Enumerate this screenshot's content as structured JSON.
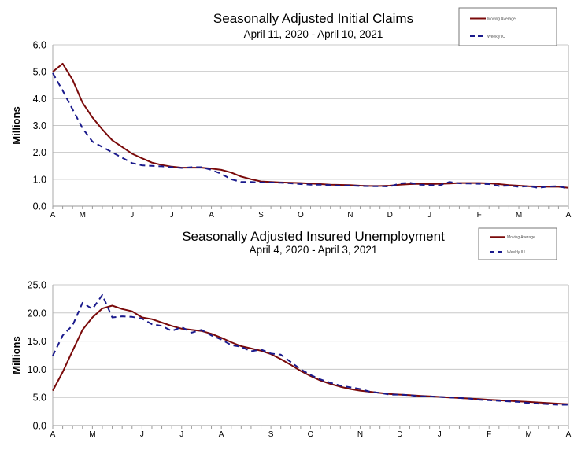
{
  "chart_data": [
    {
      "type": "line",
      "title": "Seasonally Adjusted Initial Claims",
      "subtitle": "April 11, 2020 - April 10, 2021",
      "ylabel": "Millions",
      "ylim": [
        0,
        6
      ],
      "yticks": [
        "0.0",
        "1.0",
        "2.0",
        "3.0",
        "4.0",
        "5.0",
        "6.0"
      ],
      "xticks": [
        {
          "label": "A",
          "week": 0
        },
        {
          "label": "M",
          "week": 3
        },
        {
          "label": "J",
          "week": 8
        },
        {
          "label": "J",
          "week": 12
        },
        {
          "label": "A",
          "week": 16
        },
        {
          "label": "S",
          "week": 21
        },
        {
          "label": "O",
          "week": 25
        },
        {
          "label": "N",
          "week": 30
        },
        {
          "label": "D",
          "week": 34
        },
        {
          "label": "J",
          "week": 38
        },
        {
          "label": "F",
          "week": 43
        },
        {
          "label": "M",
          "week": 47
        },
        {
          "label": "A",
          "week": 52
        }
      ],
      "grid": true,
      "legend": "top-right",
      "series": [
        {
          "name": "Moving Average",
          "color": "#7a0a0a",
          "dash": false,
          "values": [
            5.0,
            5.3,
            4.7,
            3.85,
            3.3,
            2.85,
            2.45,
            2.2,
            1.95,
            1.78,
            1.62,
            1.53,
            1.47,
            1.43,
            1.43,
            1.43,
            1.4,
            1.35,
            1.25,
            1.1,
            1.0,
            0.92,
            0.9,
            0.88,
            0.87,
            0.86,
            0.84,
            0.82,
            0.8,
            0.79,
            0.78,
            0.76,
            0.75,
            0.75,
            0.76,
            0.8,
            0.82,
            0.83,
            0.82,
            0.83,
            0.84,
            0.86,
            0.86,
            0.86,
            0.85,
            0.82,
            0.78,
            0.76,
            0.74,
            0.73,
            0.72,
            0.72,
            0.68
          ]
        },
        {
          "name": "Weekly IC",
          "color": "#1a1a8c",
          "dash": true,
          "values": [
            4.95,
            4.3,
            3.6,
            2.9,
            2.4,
            2.2,
            2.0,
            1.8,
            1.6,
            1.52,
            1.5,
            1.48,
            1.45,
            1.42,
            1.45,
            1.45,
            1.35,
            1.2,
            1.0,
            0.9,
            0.9,
            0.88,
            0.88,
            0.87,
            0.85,
            0.82,
            0.8,
            0.8,
            0.78,
            0.76,
            0.77,
            0.75,
            0.74,
            0.74,
            0.73,
            0.85,
            0.87,
            0.8,
            0.78,
            0.77,
            0.9,
            0.85,
            0.84,
            0.83,
            0.82,
            0.75,
            0.76,
            0.72,
            0.74,
            0.68,
            0.73,
            0.74,
            0.65
          ]
        }
      ]
    },
    {
      "type": "line",
      "title": "Seasonally Adjusted Insured Unemployment",
      "subtitle": "April 4, 2020 - April 3, 2021",
      "ylabel": "Millions",
      "ylim": [
        0,
        25
      ],
      "yticks": [
        "0.0",
        "5.0",
        "10.0",
        "15.0",
        "20.0",
        "25.0"
      ],
      "xticks": [
        {
          "label": "A",
          "week": 0
        },
        {
          "label": "M",
          "week": 4
        },
        {
          "label": "J",
          "week": 9
        },
        {
          "label": "J",
          "week": 13
        },
        {
          "label": "A",
          "week": 17
        },
        {
          "label": "S",
          "week": 22
        },
        {
          "label": "O",
          "week": 26
        },
        {
          "label": "N",
          "week": 31
        },
        {
          "label": "D",
          "week": 35
        },
        {
          "label": "J",
          "week": 39
        },
        {
          "label": "F",
          "week": 44
        },
        {
          "label": "M",
          "week": 48
        },
        {
          "label": "A",
          "week": 52
        }
      ],
      "grid": true,
      "legend": "top-right",
      "series": [
        {
          "name": "Moving Average",
          "color": "#7a0a0a",
          "dash": false,
          "values": [
            6.2,
            9.5,
            13.3,
            17.0,
            19.2,
            20.8,
            21.3,
            20.7,
            20.3,
            19.2,
            18.9,
            18.3,
            17.7,
            17.2,
            17.0,
            16.8,
            16.3,
            15.6,
            14.8,
            14.1,
            13.7,
            13.3,
            12.7,
            11.8,
            10.8,
            9.7,
            8.8,
            8.0,
            7.4,
            6.9,
            6.5,
            6.2,
            6.0,
            5.8,
            5.6,
            5.5,
            5.4,
            5.3,
            5.2,
            5.1,
            5.0,
            4.9,
            4.8,
            4.7,
            4.6,
            4.5,
            4.4,
            4.3,
            4.2,
            4.1,
            4.0,
            3.9,
            3.8
          ]
        },
        {
          "name": "Weekly IU",
          "color": "#1a1a8c",
          "dash": true,
          "values": [
            12.4,
            16.0,
            17.8,
            21.8,
            20.7,
            23.2,
            19.2,
            19.4,
            19.3,
            19.0,
            18.0,
            17.7,
            16.8,
            17.5,
            16.5,
            17.0,
            16.0,
            15.3,
            14.3,
            14.0,
            13.2,
            13.5,
            12.8,
            12.6,
            11.3,
            10.0,
            9.0,
            8.2,
            7.6,
            7.1,
            6.8,
            6.5,
            6.0,
            5.8,
            5.5,
            5.5,
            5.4,
            5.2,
            5.2,
            5.1,
            5.0,
            4.9,
            4.8,
            4.6,
            4.5,
            4.4,
            4.3,
            4.2,
            4.0,
            3.9,
            3.8,
            3.7,
            3.7
          ]
        }
      ]
    }
  ]
}
